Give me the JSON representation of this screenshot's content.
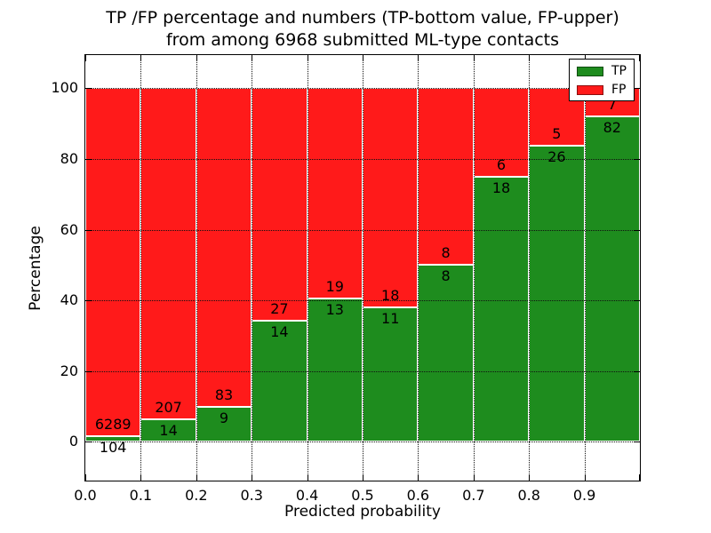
{
  "chart_data": {
    "type": "bar",
    "stacked": true,
    "title_line1": "TP /FP percentage and numbers (TP-bottom value, FP-upper)",
    "title_line2": "from among 6968 submitted ML-type contacts",
    "xlabel": "Predicted probability",
    "ylabel": "Percentage",
    "total_contacts": 6968,
    "x_tick_labels": [
      "0.0",
      "0.1",
      "0.2",
      "0.3",
      "0.4",
      "0.5",
      "0.6",
      "0.7",
      "0.8",
      "0.9"
    ],
    "y_ticks": [
      0,
      20,
      40,
      60,
      80,
      100
    ],
    "xlim": [
      0.0,
      1.0
    ],
    "ylim": [
      -11.0,
      109.4
    ],
    "grid": true,
    "bin_width": 0.1,
    "categories": [
      "0.0-0.1",
      "0.1-0.2",
      "0.2-0.3",
      "0.3-0.4",
      "0.4-0.5",
      "0.5-0.6",
      "0.6-0.7",
      "0.7-0.8",
      "0.8-0.9",
      "0.9-1.0"
    ],
    "series": [
      {
        "name": "TP",
        "color": "#1e8c1e",
        "values": [
          104,
          14,
          9,
          14,
          13,
          11,
          8,
          18,
          26,
          82
        ]
      },
      {
        "name": "FP",
        "color": "#ff1a1a",
        "values": [
          6289,
          207,
          83,
          27,
          19,
          18,
          8,
          6,
          5,
          7
        ]
      }
    ],
    "bar_value_labels": {
      "tp_position": "just below green/red boundary",
      "fp_position": "just above green/red boundary"
    },
    "legend": {
      "position": "upper right",
      "entries": [
        {
          "label": "TP",
          "color": "#1e8c1e"
        },
        {
          "label": "FP",
          "color": "#ff1a1a"
        }
      ]
    }
  }
}
